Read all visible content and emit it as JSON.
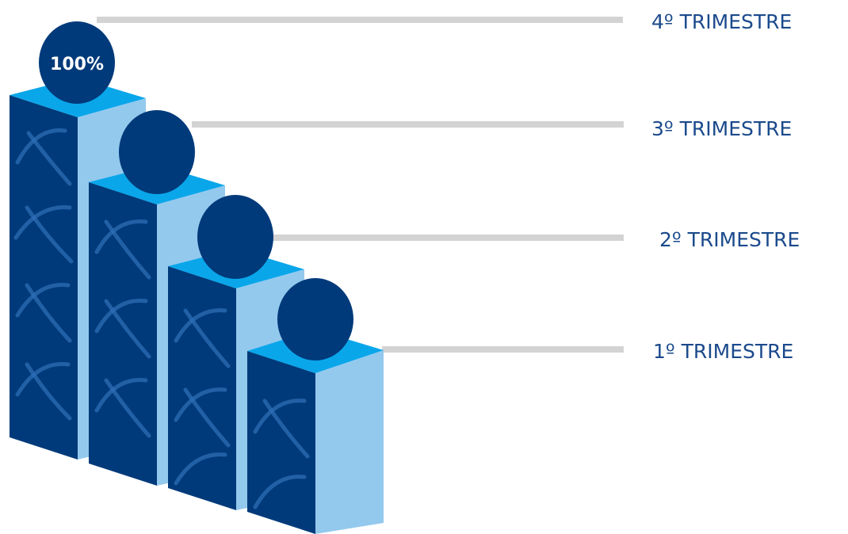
{
  "colors": {
    "front": "#003a7a",
    "side": "#94c9ee",
    "top": "#0aa6ea",
    "head": "#003a7a",
    "connector": "#d3d3d3",
    "label": "#1b4a8c",
    "pattern": "#2d6eb5"
  },
  "steps": [
    {
      "label": "1º TRIMESTRE",
      "badge": ""
    },
    {
      "label": "2º TRIMESTRE",
      "badge": ""
    },
    {
      "label": "3º TRIMESTRE",
      "badge": ""
    },
    {
      "label": "4º TRIMESTRE",
      "badge": "100%"
    }
  ]
}
